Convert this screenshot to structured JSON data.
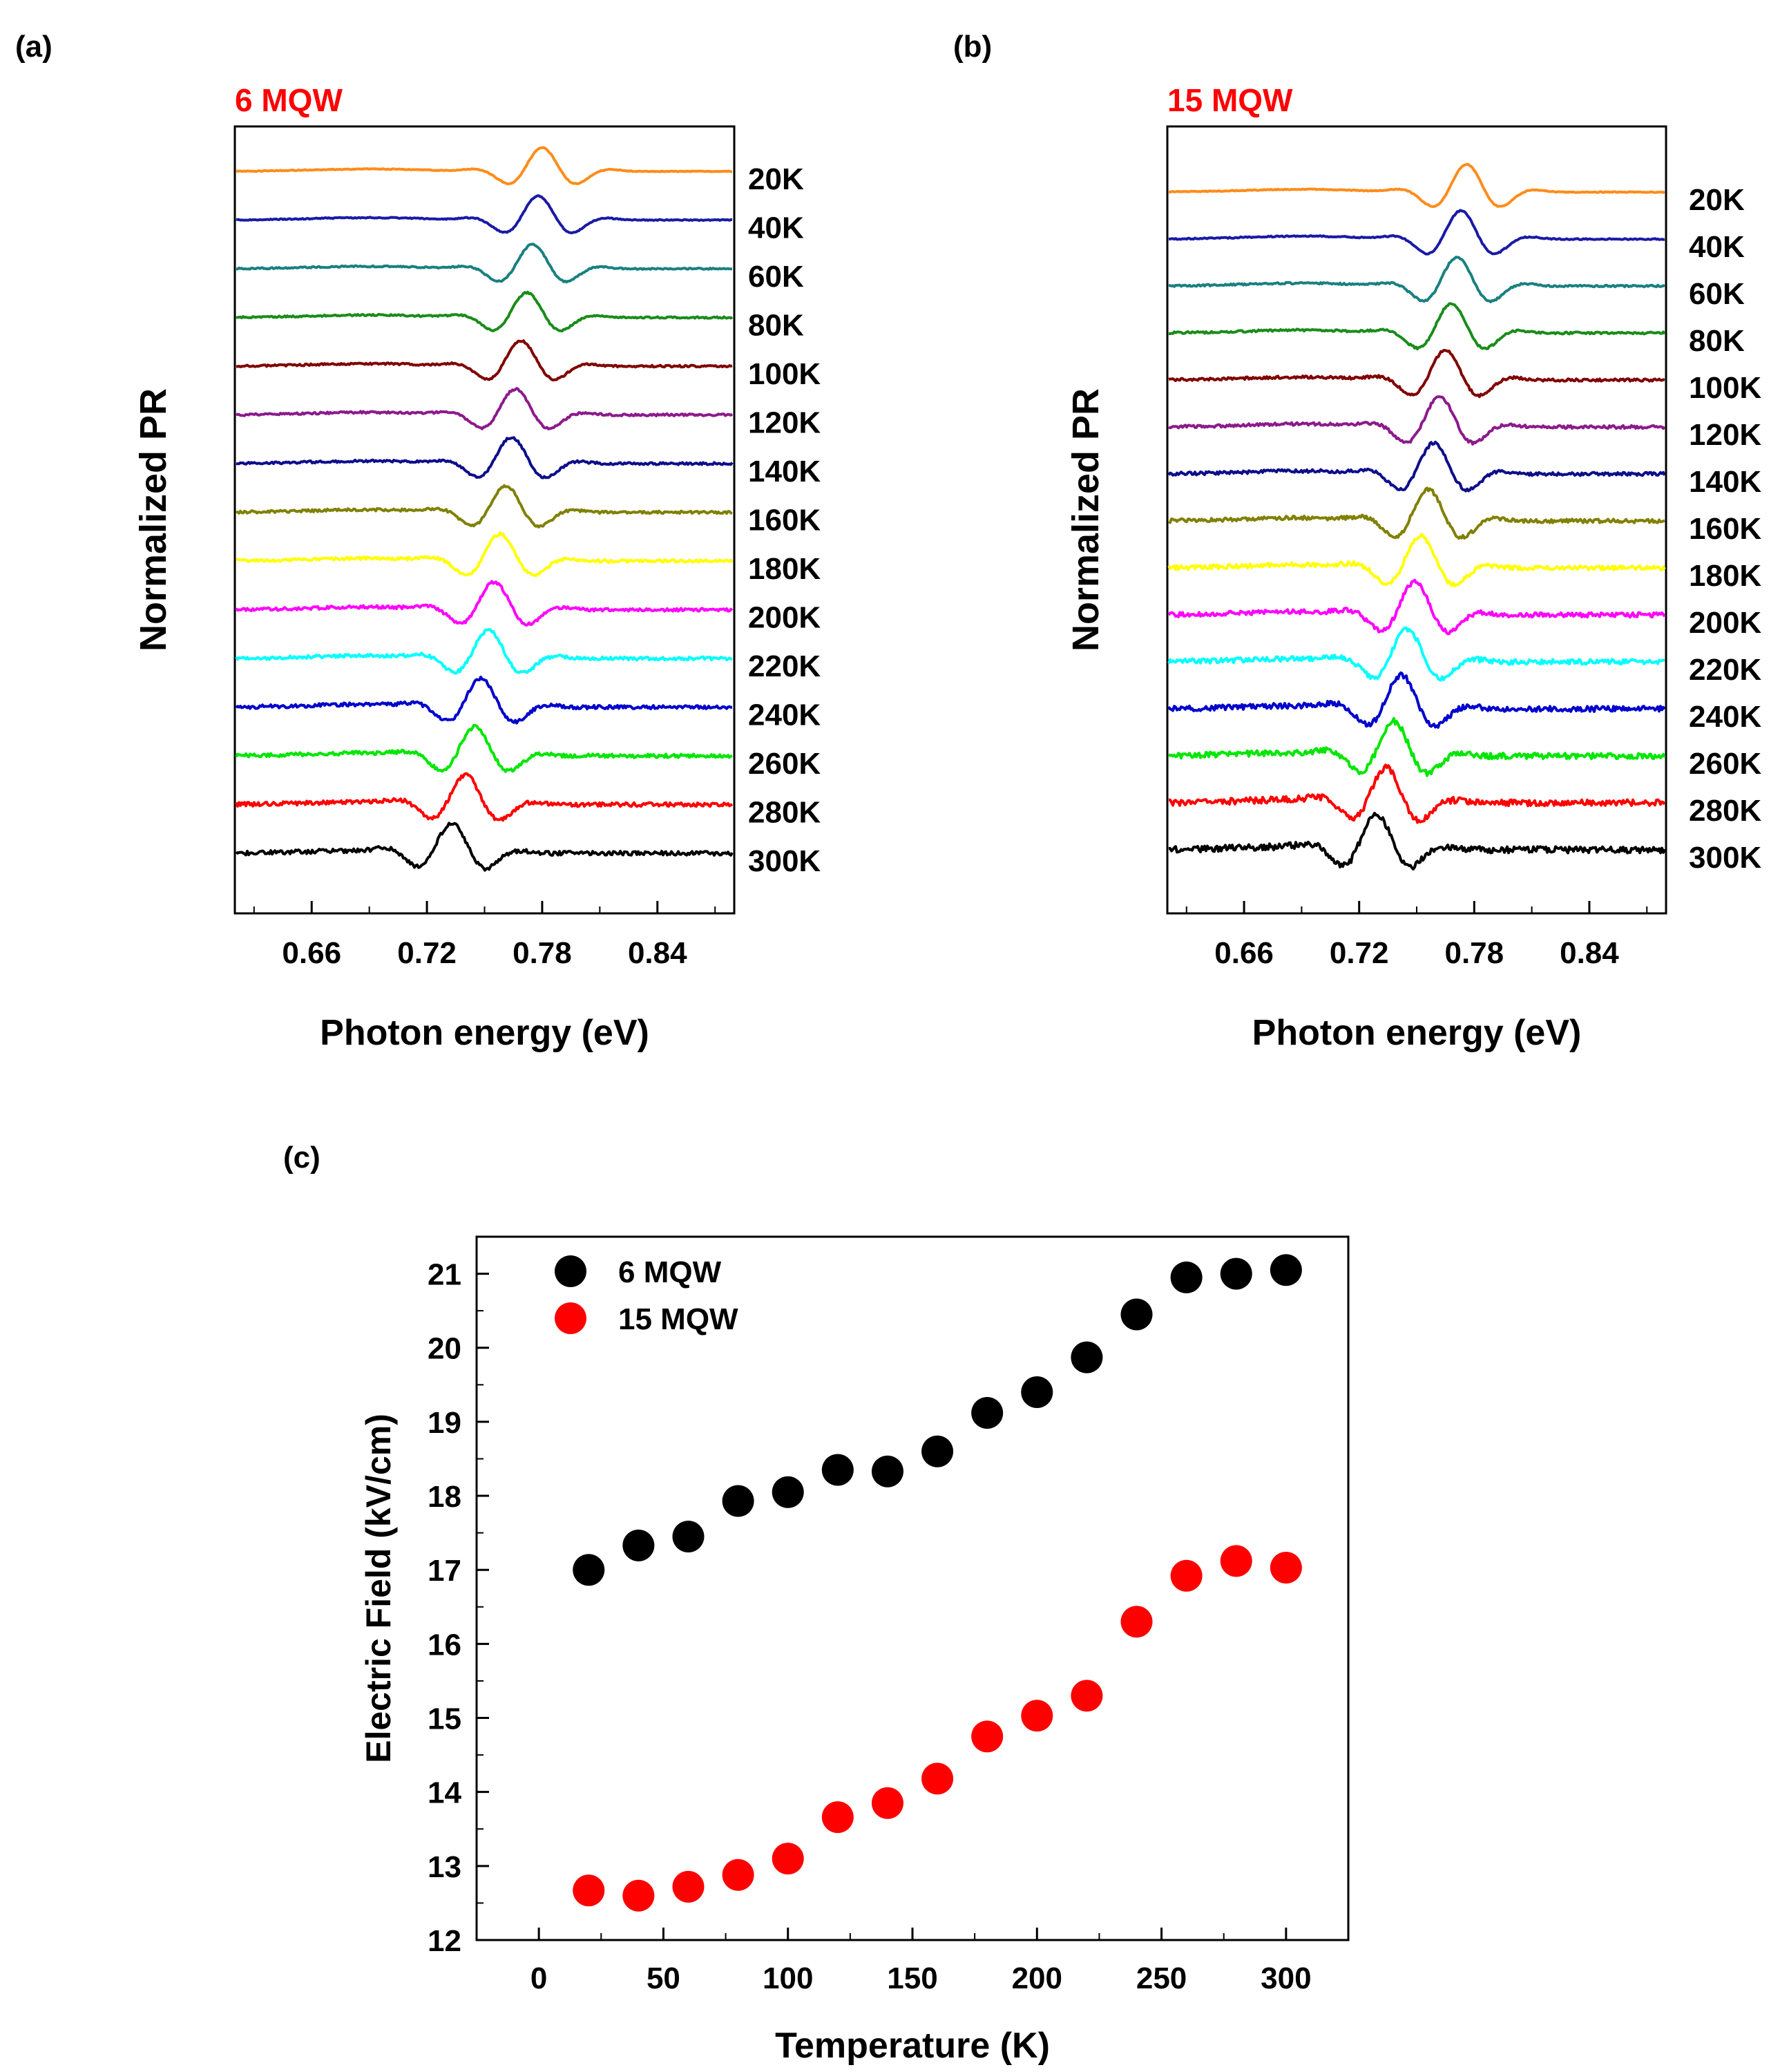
{
  "chart_data": [
    {
      "panel": "(a)",
      "type": "line",
      "title": "6 MQW",
      "title_color": "#ff0000",
      "xlabel": "Photon energy (eV)",
      "ylabel": "Normalized PR",
      "xlim": [
        0.62,
        0.88
      ],
      "xticks": [
        0.66,
        0.72,
        0.78,
        0.84
      ],
      "xtick_labels": [
        "0.66",
        "0.72",
        "0.78",
        "0.84"
      ],
      "series": [
        {
          "name": "20K",
          "color": "#ff8c1a",
          "center": 0.78
        },
        {
          "name": "40K",
          "color": "#1a1aa6",
          "center": 0.778
        },
        {
          "name": "60K",
          "color": "#1a8080",
          "center": 0.775
        },
        {
          "name": "80K",
          "color": "#1a8c1a",
          "center": 0.772
        },
        {
          "name": "100K",
          "color": "#800000",
          "center": 0.769
        },
        {
          "name": "120K",
          "color": "#8c1a8c",
          "center": 0.766
        },
        {
          "name": "140K",
          "color": "#0d0d8c",
          "center": 0.764
        },
        {
          "name": "160K",
          "color": "#808000",
          "center": 0.761
        },
        {
          "name": "180K",
          "color": "#ffff00",
          "center": 0.758
        },
        {
          "name": "200K",
          "color": "#ff00ff",
          "center": 0.755
        },
        {
          "name": "220K",
          "color": "#00ffff",
          "center": 0.752
        },
        {
          "name": "240K",
          "color": "#0000cc",
          "center": 0.748
        },
        {
          "name": "260K",
          "color": "#00e600",
          "center": 0.745
        },
        {
          "name": "280K",
          "color": "#ff0000",
          "center": 0.74
        },
        {
          "name": "300K",
          "color": "#000000",
          "center": 0.733
        }
      ]
    },
    {
      "panel": "(b)",
      "type": "line",
      "title": "15 MQW",
      "title_color": "#ff0000",
      "xlabel": "Photon energy (eV)",
      "ylabel": "Normalized PR",
      "xlim": [
        0.62,
        0.88
      ],
      "xticks": [
        0.66,
        0.72,
        0.78,
        0.84
      ],
      "xtick_labels": [
        "0.66",
        "0.72",
        "0.78",
        "0.84"
      ],
      "series": [
        {
          "name": "20K",
          "color": "#ff8c1a",
          "center": 0.776
        },
        {
          "name": "40K",
          "color": "#1a1aa6",
          "center": 0.773
        },
        {
          "name": "60K",
          "color": "#1a8080",
          "center": 0.771
        },
        {
          "name": "80K",
          "color": "#1a8c1a",
          "center": 0.768
        },
        {
          "name": "100K",
          "color": "#800000",
          "center": 0.765
        },
        {
          "name": "120K",
          "color": "#8c1a8c",
          "center": 0.762
        },
        {
          "name": "140K",
          "color": "#0d0d8c",
          "center": 0.759
        },
        {
          "name": "160K",
          "color": "#808000",
          "center": 0.756
        },
        {
          "name": "180K",
          "color": "#ffff00",
          "center": 0.752
        },
        {
          "name": "200K",
          "color": "#ff00ff",
          "center": 0.749
        },
        {
          "name": "220K",
          "color": "#00ffff",
          "center": 0.745
        },
        {
          "name": "240K",
          "color": "#0000cc",
          "center": 0.742
        },
        {
          "name": "260K",
          "color": "#00e600",
          "center": 0.738
        },
        {
          "name": "280K",
          "color": "#ff0000",
          "center": 0.734
        },
        {
          "name": "300K",
          "color": "#000000",
          "center": 0.729
        }
      ]
    },
    {
      "panel": "(c)",
      "type": "scatter",
      "xlabel": "Temperature (K)",
      "ylabel": "Electric Field (kV/cm)",
      "xlim": [
        -25,
        325
      ],
      "ylim": [
        12,
        21.5
      ],
      "xticks": [
        0,
        50,
        100,
        150,
        200,
        250,
        300
      ],
      "yticks": [
        12,
        13,
        14,
        15,
        16,
        17,
        18,
        19,
        20,
        21
      ],
      "legend_position": "top-left",
      "x": [
        20,
        40,
        60,
        80,
        100,
        120,
        140,
        160,
        180,
        200,
        220,
        240,
        260,
        280,
        300
      ],
      "series": [
        {
          "name": "6 MQW",
          "color": "#000000",
          "values": [
            17.0,
            17.33,
            17.45,
            17.93,
            18.05,
            18.35,
            18.33,
            18.6,
            19.12,
            19.4,
            19.87,
            20.45,
            20.95,
            21.0,
            21.05
          ]
        },
        {
          "name": "15 MQW",
          "color": "#ff0000",
          "values": [
            12.67,
            12.6,
            12.72,
            12.88,
            13.1,
            13.66,
            13.85,
            14.18,
            14.75,
            15.03,
            15.3,
            16.3,
            16.92,
            17.12,
            17.03
          ]
        }
      ]
    }
  ]
}
